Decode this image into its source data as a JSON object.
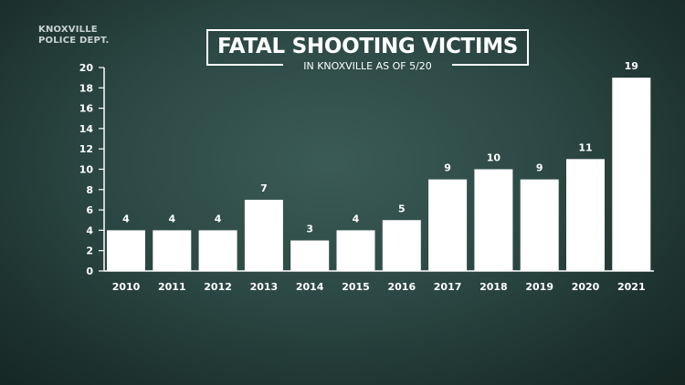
{
  "source": {
    "line1": "KNOXVILLE",
    "line2": "POLICE DEPT."
  },
  "chart_data": {
    "type": "bar",
    "title": "FATAL SHOOTING VICTIMS",
    "subtitle": "IN KNOXVILLE AS OF 5/20",
    "categories": [
      "2010",
      "2011",
      "2012",
      "2013",
      "2014",
      "2015",
      "2016",
      "2017",
      "2018",
      "2019",
      "2020",
      "2021"
    ],
    "values": [
      4,
      4,
      4,
      7,
      3,
      4,
      5,
      9,
      10,
      9,
      11,
      19
    ],
    "ylim": [
      0,
      20
    ],
    "yticks": [
      0,
      2,
      4,
      6,
      8,
      10,
      12,
      14,
      16,
      18,
      20
    ],
    "bar_color": "#ffffff",
    "grid": false
  }
}
